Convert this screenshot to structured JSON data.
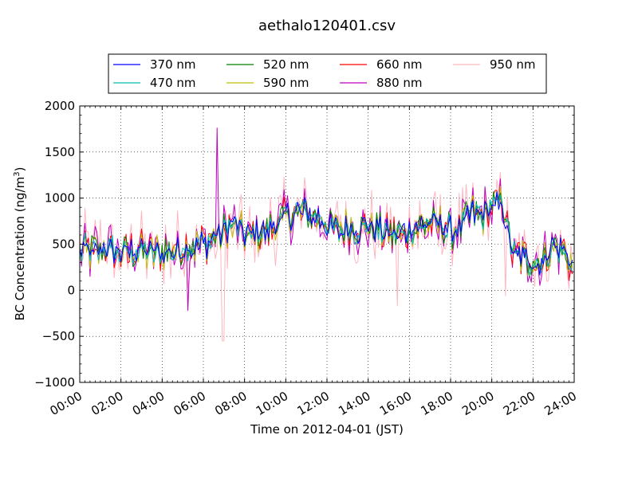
{
  "chart_data": {
    "type": "line",
    "title": "aethalo120401.csv",
    "xlabel": "Time on 2012-04-01 (JST)",
    "ylabel_main": "BC Concentration (ng/m",
    "ylabel_sup": "3",
    "ylabel_close": ")",
    "xlim_hours": [
      0,
      24
    ],
    "ylim": [
      -1000,
      2000
    ],
    "x_ticks": [
      "00:00",
      "02:00",
      "04:00",
      "06:00",
      "08:00",
      "10:00",
      "12:00",
      "14:00",
      "16:00",
      "18:00",
      "20:00",
      "22:00",
      "24:00"
    ],
    "y_ticks": [
      "−1000",
      "−500",
      "0",
      "500",
      "1000",
      "1500",
      "2000"
    ],
    "grid": true,
    "legend_position": "top-center",
    "x_times": [
      "00:00",
      "00:30",
      "01:00",
      "01:30",
      "02:00",
      "02:30",
      "03:00",
      "03:30",
      "04:00",
      "04:30",
      "05:00",
      "05:30",
      "06:00",
      "06:30",
      "07:00",
      "07:30",
      "08:00",
      "08:30",
      "09:00",
      "09:30",
      "10:00",
      "10:30",
      "11:00",
      "11:30",
      "12:00",
      "12:30",
      "13:00",
      "13:30",
      "14:00",
      "14:30",
      "15:00",
      "15:30",
      "16:00",
      "16:30",
      "17:00",
      "17:30",
      "18:00",
      "18:30",
      "19:00",
      "19:30",
      "20:00",
      "20:30",
      "21:00",
      "21:30",
      "22:00",
      "22:30",
      "23:00",
      "23:30",
      "23:55"
    ],
    "trend": [
      450,
      420,
      430,
      440,
      410,
      430,
      420,
      400,
      420,
      430,
      450,
      480,
      500,
      560,
      650,
      700,
      620,
      600,
      650,
      700,
      800,
      850,
      850,
      800,
      700,
      650,
      680,
      650,
      700,
      650,
      620,
      600,
      650,
      700,
      750,
      700,
      650,
      700,
      850,
      800,
      900,
      950,
      400,
      350,
      300,
      320,
      500,
      420,
      250
    ],
    "series": [
      {
        "name": "370 nm",
        "color": "#0000ff",
        "amp": 90
      },
      {
        "name": "470 nm",
        "color": "#00bfbf",
        "amp": 100
      },
      {
        "name": "520 nm",
        "color": "#008000",
        "amp": 110
      },
      {
        "name": "590 nm",
        "color": "#bfbf00",
        "amp": 120
      },
      {
        "name": "660 nm",
        "color": "#ff0000",
        "amp": 130
      },
      {
        "name": "880 nm",
        "color": "#bf00bf",
        "amp": 170
      },
      {
        "name": "950 nm",
        "color": "#ffb6c1",
        "amp": 230
      }
    ],
    "spikes": [
      {
        "time": "06:42",
        "series": "880 nm",
        "value": 1760
      },
      {
        "time": "06:58",
        "series": "950 nm",
        "value": -550
      },
      {
        "time": "05:15",
        "series": "880 nm",
        "value": -220
      },
      {
        "time": "15:25",
        "series": "950 nm",
        "value": -170
      },
      {
        "time": "20:40",
        "series": "950 nm",
        "value": -60
      }
    ]
  }
}
